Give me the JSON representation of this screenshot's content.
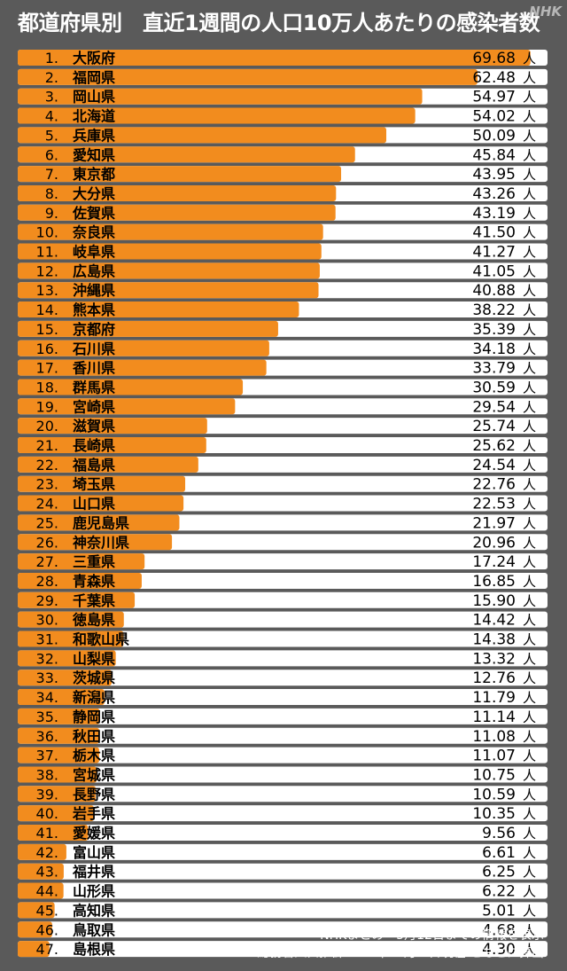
{
  "title": "都道府県別　直近1週間の人口10万人あたりの感染者数",
  "logo_text": "NHK",
  "footer": {
    "line1": "NHKまとめ　5月12日までの情報を表示",
    "line2": "総務省人口推計2019年10月１日現在 をもとに算出"
  },
  "colors": {
    "background": "#5a5a5a",
    "bar": "#f28c1e",
    "track": "#ffffff",
    "text": "#000000"
  },
  "chart_data": {
    "type": "bar",
    "orientation": "horizontal",
    "unit": "人",
    "xlim": [
      0,
      72
    ],
    "grid": false,
    "legend": "none",
    "ranks": [
      "1.",
      "2.",
      "3.",
      "4.",
      "5.",
      "6.",
      "7.",
      "8.",
      "9.",
      "10.",
      "11.",
      "12.",
      "13.",
      "14.",
      "15.",
      "16.",
      "17.",
      "18.",
      "19.",
      "20.",
      "21.",
      "22.",
      "23.",
      "24.",
      "25.",
      "26.",
      "27.",
      "28.",
      "29.",
      "30.",
      "31.",
      "32.",
      "33.",
      "34.",
      "35.",
      "36.",
      "37.",
      "38.",
      "39.",
      "40.",
      "41.",
      "42.",
      "43.",
      "44.",
      "45.",
      "46.",
      "47."
    ],
    "categories": [
      "大阪府",
      "福岡県",
      "岡山県",
      "北海道",
      "兵庫県",
      "愛知県",
      "東京都",
      "大分県",
      "佐賀県",
      "奈良県",
      "岐阜県",
      "広島県",
      "沖縄県",
      "熊本県",
      "京都府",
      "石川県",
      "香川県",
      "群馬県",
      "宮崎県",
      "滋賀県",
      "長崎県",
      "福島県",
      "埼玉県",
      "山口県",
      "鹿児島県",
      "神奈川県",
      "三重県",
      "青森県",
      "千葉県",
      "徳島県",
      "和歌山県",
      "山梨県",
      "茨城県",
      "新潟県",
      "静岡県",
      "秋田県",
      "栃木県",
      "宮城県",
      "長野県",
      "岩手県",
      "愛媛県",
      "富山県",
      "福井県",
      "山形県",
      "高知県",
      "鳥取県",
      "島根県"
    ],
    "value_labels": [
      "69.68",
      "62.48",
      "54.97",
      "54.02",
      "50.09",
      "45.84",
      "43.95",
      "43.26",
      "43.19",
      "41.50",
      "41.27",
      "41.05",
      "40.88",
      "38.22",
      "35.39",
      "34.18",
      "33.79",
      "30.59",
      "29.54",
      "25.74",
      "25.62",
      "24.54",
      "22.76",
      "22.53",
      "21.97",
      "20.96",
      "17.24",
      "16.85",
      "15.90",
      "14.42",
      "14.38",
      "13.32",
      "12.76",
      "11.79",
      "11.14",
      "11.08",
      "11.07",
      "10.75",
      "10.59",
      "10.35",
      "9.56",
      "6.61",
      "6.25",
      "6.22",
      "5.01",
      "4.68",
      "4.30"
    ],
    "values": [
      69.68,
      62.48,
      54.97,
      54.02,
      50.09,
      45.84,
      43.95,
      43.26,
      43.19,
      41.5,
      41.27,
      41.05,
      40.88,
      38.22,
      35.39,
      34.18,
      33.79,
      30.59,
      29.54,
      25.74,
      25.62,
      24.54,
      22.76,
      22.53,
      21.97,
      20.96,
      17.24,
      16.85,
      15.9,
      14.42,
      14.38,
      13.32,
      12.76,
      11.79,
      11.14,
      11.08,
      11.07,
      10.75,
      10.59,
      10.35,
      9.56,
      6.61,
      6.25,
      6.22,
      5.01,
      4.68,
      4.3
    ]
  }
}
